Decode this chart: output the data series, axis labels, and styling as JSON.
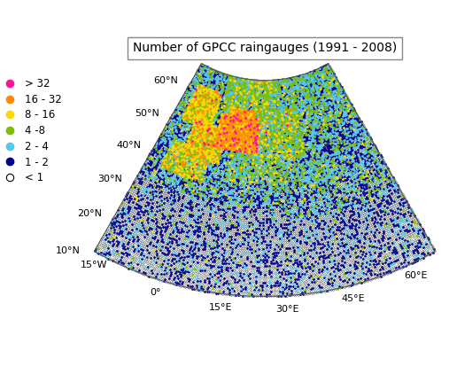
{
  "title": "Number of GPCC raingauges (1991 - 2008)",
  "lon_min": -15,
  "lon_max": 65,
  "lat_min": 10,
  "lat_max": 65,
  "central_longitude": 25,
  "central_latitude": 50,
  "standard_parallels": [
    35,
    60
  ],
  "legend_categories": [
    {
      "label": "> 32",
      "color": "#FF1493",
      "filled": true
    },
    {
      "label": "16 - 32",
      "color": "#FF8C00",
      "filled": true
    },
    {
      "label": "8 - 16",
      "color": "#FFD700",
      "filled": true
    },
    {
      "label": "4 -8",
      "color": "#7FBF00",
      "filled": true
    },
    {
      "label": "2 - 4",
      "color": "#56C8E8",
      "filled": true
    },
    {
      "label": "1 - 2",
      "color": "#00008B",
      "filled": true
    },
    {
      "label": "< 1",
      "color": "#000000",
      "filled": false
    }
  ],
  "grid_resolution": 0.5,
  "marker_size": 2.0,
  "background_color": "#FFFFFF",
  "title_fontsize": 10,
  "legend_fontsize": 8.5,
  "tick_fontsize": 8,
  "figsize": [
    5.07,
    4.22
  ],
  "dpi": 100,
  "xticks": [
    -15,
    0,
    15,
    30,
    45,
    60
  ],
  "yticks": [
    10,
    20,
    30,
    40,
    50,
    60
  ],
  "outline_color": "#555555",
  "land_color": "#FFFFFF",
  "ocean_color": "#FFFFFF",
  "coast_linewidth": 0.5,
  "border_linewidth": 0.3
}
